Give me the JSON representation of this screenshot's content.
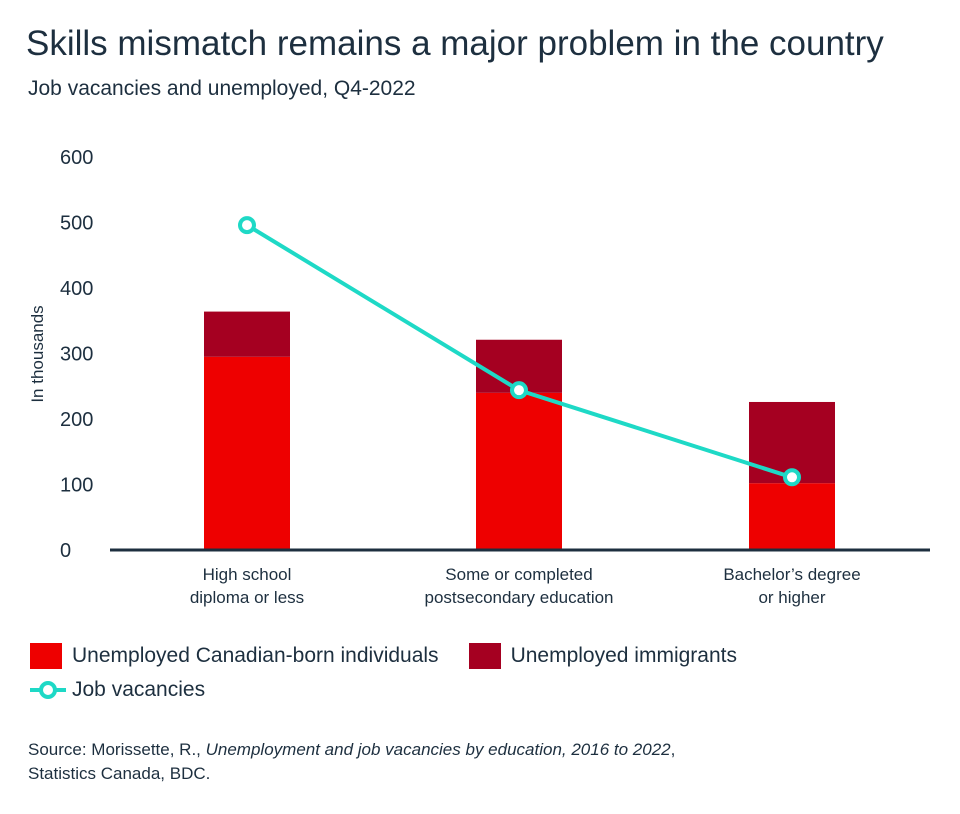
{
  "title": "Skills mismatch remains a major problem in the country",
  "subtitle": "Job vacancies and unemployed, Q4-2022",
  "chart_data": {
    "type": "bar",
    "stacked": true,
    "categories": [
      [
        "High school",
        "diploma or less"
      ],
      [
        "Some or completed",
        "postsecondary education"
      ],
      [
        "Bachelor’s degree",
        "or higher"
      ]
    ],
    "ylabel": "In thousands",
    "ylim": [
      0,
      600
    ],
    "yticks": [
      0,
      100,
      200,
      300,
      400,
      500,
      600
    ],
    "grid": false,
    "legend_position": "bottom",
    "series": [
      {
        "name": "Unemployed Canadian-born individuals",
        "type": "bar",
        "color": "#EE0000",
        "values": [
          295,
          240,
          102
        ]
      },
      {
        "name": "Unemployed immigrants",
        "type": "bar",
        "color": "#A50021",
        "values": [
          69,
          81,
          124
        ]
      },
      {
        "name": "Job vacancies",
        "type": "line",
        "color": "#1ED9C6",
        "values": [
          496,
          244,
          111
        ]
      }
    ]
  },
  "source": {
    "prefix": "Source: Morissette, R., ",
    "italic": "Unemployment and job vacancies by education, 2016 to 2022",
    "suffix": ",",
    "line2": "Statistics Canada, BDC."
  }
}
